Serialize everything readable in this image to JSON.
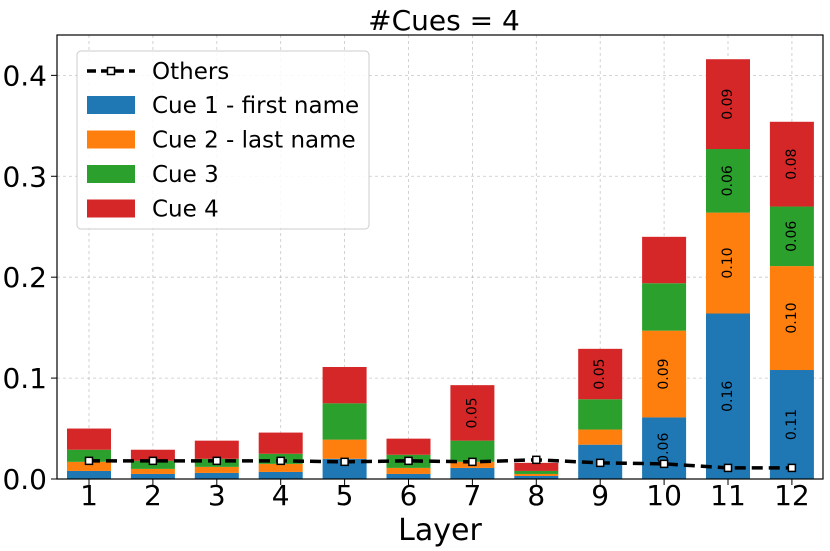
{
  "chart_data": {
    "type": "bar",
    "stacked": true,
    "title": "#Cues = 4",
    "xlabel": "Layer",
    "ylabel": "",
    "ylim": [
      0,
      0.44
    ],
    "yticks": [
      "0.0",
      "0.1",
      "0.2",
      "0.3",
      "0.4"
    ],
    "ytick_values": [
      0,
      0.1,
      0.2,
      0.3,
      0.4
    ],
    "categories": [
      "1",
      "2",
      "3",
      "4",
      "5",
      "6",
      "7",
      "8",
      "9",
      "10",
      "11",
      "12"
    ],
    "grid": true,
    "legend_position": "top-left",
    "series": [
      {
        "name": "Cue 1 - first name",
        "color": "#1f77b4",
        "values": [
          0.008,
          0.005,
          0.006,
          0.007,
          0.02,
          0.005,
          0.011,
          0.003,
          0.034,
          0.061,
          0.164,
          0.108
        ]
      },
      {
        "name": "Cue 2 - last name",
        "color": "#ff7f0e",
        "values": [
          0.009,
          0.005,
          0.006,
          0.008,
          0.019,
          0.006,
          0.006,
          0.002,
          0.015,
          0.086,
          0.1,
          0.103
        ]
      },
      {
        "name": "Cue 3",
        "color": "#2ca02c",
        "values": [
          0.012,
          0.008,
          0.008,
          0.01,
          0.036,
          0.013,
          0.021,
          0.003,
          0.03,
          0.047,
          0.063,
          0.059
        ]
      },
      {
        "name": "Cue 4",
        "color": "#d62728",
        "values": [
          0.021,
          0.011,
          0.018,
          0.021,
          0.036,
          0.016,
          0.055,
          0.008,
          0.05,
          0.046,
          0.089,
          0.084
        ]
      }
    ],
    "line": {
      "name": "Others",
      "color": "#000000",
      "values": [
        0.018,
        0.018,
        0.018,
        0.018,
        0.017,
        0.018,
        0.017,
        0.019,
        0.016,
        0.015,
        0.011,
        0.011
      ]
    },
    "annotations": [
      {
        "series": 0,
        "index": 9,
        "text": "0.06"
      },
      {
        "series": 0,
        "index": 10,
        "text": "0.16"
      },
      {
        "series": 0,
        "index": 11,
        "text": "0.11"
      },
      {
        "series": 1,
        "index": 9,
        "text": "0.09"
      },
      {
        "series": 1,
        "index": 10,
        "text": "0.10"
      },
      {
        "series": 1,
        "index": 11,
        "text": "0.10"
      },
      {
        "series": 2,
        "index": 10,
        "text": "0.06"
      },
      {
        "series": 2,
        "index": 11,
        "text": "0.06"
      },
      {
        "series": 3,
        "index": 6,
        "text": "0.05"
      },
      {
        "series": 3,
        "index": 8,
        "text": "0.05"
      },
      {
        "series": 3,
        "index": 10,
        "text": "0.09"
      },
      {
        "series": 3,
        "index": 11,
        "text": "0.08"
      }
    ]
  }
}
